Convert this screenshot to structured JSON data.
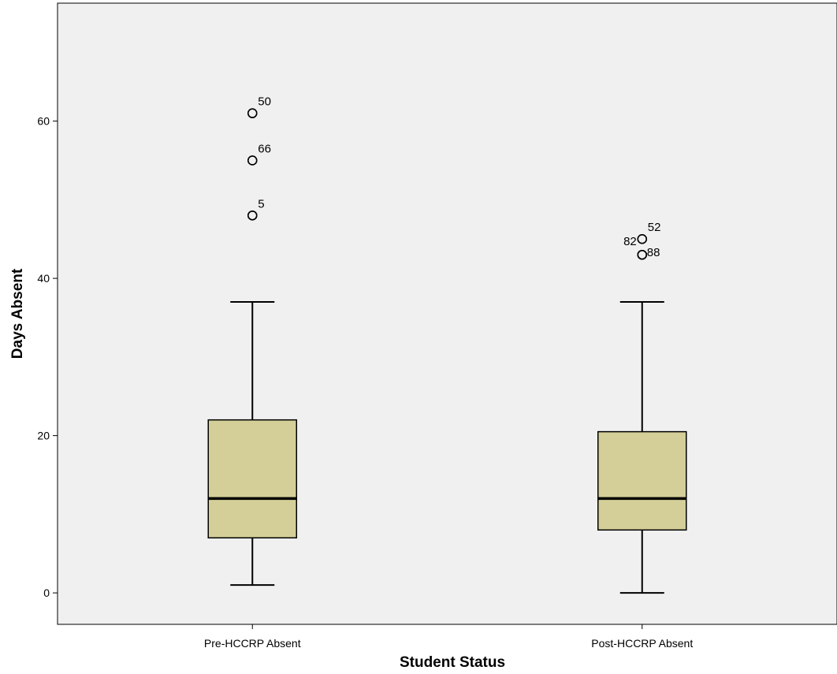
{
  "chart_data": {
    "type": "boxplot",
    "title": "",
    "xlabel": "Student Status",
    "ylabel": "Days Absent",
    "ylim": [
      -4,
      75
    ],
    "yticks": [
      0,
      20,
      40,
      60
    ],
    "grid": false,
    "colors": {
      "plot_background": "#f0f0f0",
      "box_fill": "#d4cf98",
      "stroke": "#000000"
    },
    "categories": [
      "Pre-HCCRP Absent",
      "Post-HCCRP Absent"
    ],
    "boxes": [
      {
        "category": "Pre-HCCRP Absent",
        "whisker_low": 1,
        "q1": 7,
        "median": 12,
        "q3": 22,
        "whisker_high": 37,
        "outliers": [
          {
            "value": 61,
            "label": "50"
          },
          {
            "value": 55,
            "label": "66"
          },
          {
            "value": 48,
            "label": "5"
          }
        ]
      },
      {
        "category": "Post-HCCRP Absent",
        "whisker_low": 0,
        "q1": 8,
        "median": 12,
        "q3": 20.5,
        "whisker_high": 37,
        "outliers": [
          {
            "value": 45,
            "label": "52"
          },
          {
            "value": 43,
            "label": "82"
          },
          {
            "value": 43,
            "label": "88"
          }
        ]
      }
    ]
  }
}
